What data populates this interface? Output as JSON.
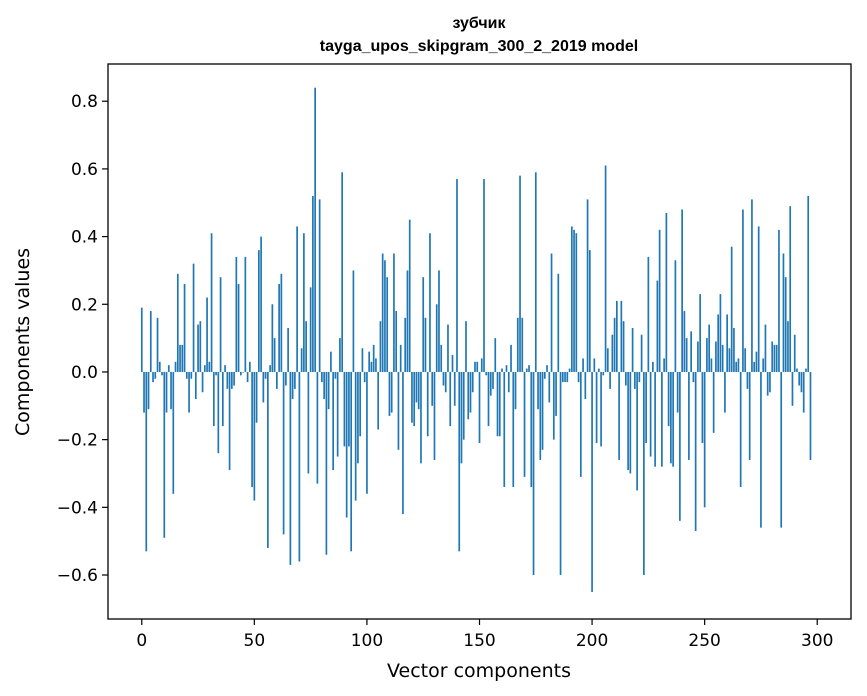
{
  "chart_data": {
    "type": "bar",
    "title": "зубчик",
    "subtitle": "tayga_upos_skipgram_300_2_2019 model",
    "xlabel": "Vector components",
    "ylabel": "Components values",
    "xlim": [
      -15,
      315
    ],
    "ylim": [
      -0.73,
      0.91
    ],
    "x_ticks": [
      0,
      50,
      100,
      150,
      200,
      250,
      300
    ],
    "y_ticks": [
      -0.6,
      -0.4,
      -0.2,
      0.0,
      0.2,
      0.4,
      0.6,
      0.8
    ],
    "y_tick_labels": [
      "−0.6",
      "−0.4",
      "−0.2",
      "0.0",
      "0.2",
      "0.4",
      "0.6",
      "0.8"
    ],
    "bar_color": "#1f77b4",
    "grid": false,
    "values": [
      0.19,
      -0.12,
      -0.53,
      -0.11,
      0.18,
      -0.03,
      -0.02,
      0.16,
      0.03,
      -0.01,
      -0.49,
      -0.12,
      0.02,
      -0.11,
      -0.36,
      0.03,
      0.29,
      0.08,
      0.08,
      0.26,
      -0.02,
      -0.12,
      -0.02,
      0.32,
      -0.08,
      0.14,
      0.15,
      -0.06,
      0.02,
      0.22,
      0.03,
      0.41,
      -0.16,
      -0.01,
      -0.24,
      0.28,
      -0.16,
      0.02,
      -0.05,
      -0.29,
      -0.05,
      -0.04,
      0.34,
      0.26,
      -0.01,
      0.0,
      0.34,
      -0.03,
      0.03,
      -0.34,
      -0.38,
      -0.15,
      0.36,
      0.4,
      -0.09,
      -0.02,
      -0.52,
      0.02,
      0.2,
      0.1,
      -0.05,
      0.26,
      0.29,
      -0.48,
      -0.04,
      0.13,
      -0.57,
      -0.08,
      -0.05,
      0.43,
      -0.56,
      0.07,
      0.41,
      0.15,
      -0.3,
      0.25,
      0.52,
      0.84,
      -0.33,
      0.51,
      -0.03,
      -0.08,
      -0.54,
      -0.11,
      0.06,
      -0.29,
      -0.02,
      -0.25,
      0.1,
      0.59,
      -0.22,
      -0.43,
      -0.22,
      -0.53,
      0.3,
      -0.38,
      -0.27,
      -0.19,
      0.07,
      -0.03,
      -0.36,
      0.06,
      0.03,
      0.08,
      0.04,
      -0.17,
      0.15,
      0.35,
      0.33,
      0.28,
      -0.13,
      -0.12,
      0.35,
      0.18,
      -0.23,
      0.08,
      -0.42,
      0.16,
      0.3,
      0.45,
      -0.15,
      -0.16,
      -0.09,
      -0.11,
      -0.27,
      0.28,
      0.16,
      -0.19,
      0.41,
      -0.1,
      -0.26,
      0.2,
      0.3,
      0.08,
      -0.04,
      -0.06,
      0.14,
      -0.16,
      0.05,
      -0.1,
      0.57,
      -0.53,
      -0.27,
      -0.2,
      0.15,
      -0.14,
      -0.12,
      -0.06,
      0.03,
      0.03,
      -0.21,
      0.04,
      0.57,
      -0.01,
      -0.16,
      -0.07,
      -0.05,
      0.1,
      -0.19,
      -0.19,
      0.01,
      -0.34,
      0.02,
      -0.06,
      0.08,
      -0.34,
      -0.11,
      0.16,
      0.58,
      0.16,
      -0.31,
      0.01,
      0.02,
      -0.34,
      -0.6,
      0.59,
      -0.11,
      -0.26,
      -0.23,
      -0.02,
      0.02,
      -0.09,
      0.35,
      -0.2,
      -0.13,
      0.29,
      -0.6,
      -0.03,
      -0.03,
      -0.03,
      0.01,
      0.43,
      0.42,
      0.41,
      -0.03,
      -0.31,
      0.04,
      -0.08,
      0.51,
      0.36,
      -0.65,
      0.04,
      -0.21,
      0.01,
      -0.22,
      -0.01,
      0.61,
      0.07,
      -0.05,
      0.11,
      0.16,
      0.21,
      -0.26,
      0.21,
      0.15,
      -0.04,
      -0.29,
      -0.3,
      0.13,
      -0.05,
      -0.35,
      -0.03,
      0.11,
      -0.6,
      -0.21,
      0.34,
      -0.25,
      0.03,
      -0.28,
      0.27,
      0.42,
      -0.28,
      0.04,
      0.47,
      -0.16,
      -0.27,
      -0.28,
      0.33,
      -0.12,
      -0.44,
      0.48,
      0.18,
      0.1,
      -0.26,
      0.12,
      -0.03,
      -0.47,
      0.09,
      0.23,
      -0.21,
      -0.4,
      0.1,
      0.14,
      0.04,
      -0.18,
      0.09,
      0.17,
      0.23,
      0.08,
      -0.12,
      0.17,
      0.07,
      0.37,
      0.13,
      0.03,
      0.04,
      -0.34,
      0.48,
      0.07,
      -0.05,
      -0.26,
      0.51,
      0.03,
      0.06,
      0.43,
      -0.46,
      0.04,
      0.14,
      -0.07,
      -0.06,
      0.09,
      0.08,
      0.08,
      0.42,
      -0.46,
      0.35,
      0.28,
      0.15,
      0.49,
      -0.1,
      0.11,
      0.01,
      -0.04,
      -0.06,
      -0.12,
      0.01,
      0.52,
      -0.26
    ]
  }
}
